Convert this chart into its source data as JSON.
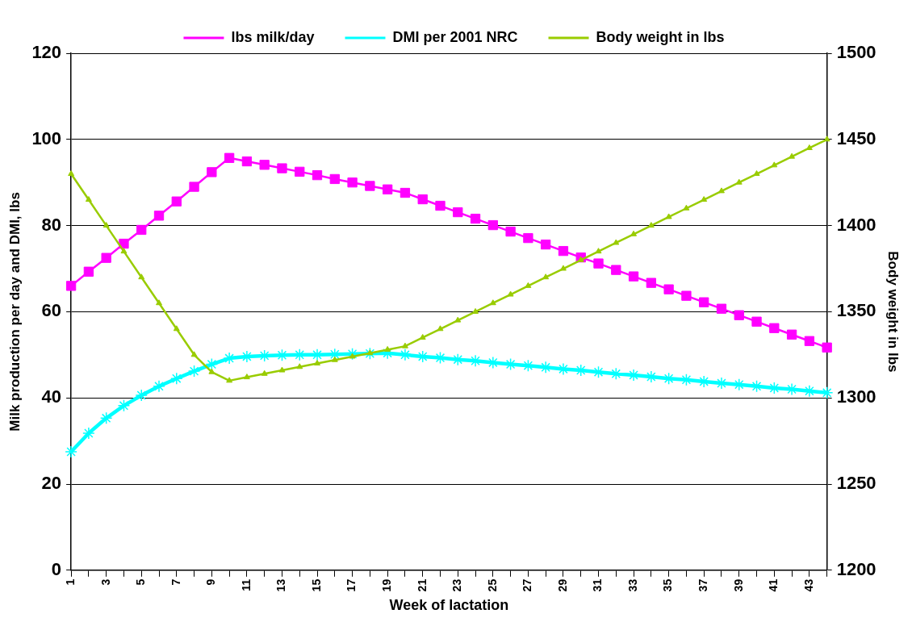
{
  "chart_data": {
    "type": "line",
    "xlabel": "Week of lactation",
    "ylabel": "Milk production per day and DMI, lbs",
    "y2label": "Body weight in lbs",
    "categories": [
      "1",
      null,
      "3",
      null,
      "5",
      null,
      "7",
      null,
      "9",
      null,
      "11",
      null,
      "13",
      null,
      "15",
      null,
      "17",
      null,
      "19",
      null,
      "21",
      null,
      "23",
      null,
      "25",
      null,
      "27",
      null,
      "29",
      null,
      "31",
      null,
      "33",
      null,
      "35",
      null,
      "37",
      null,
      "39",
      null,
      "41",
      null,
      "43",
      null
    ],
    "series": [
      {
        "name": "lbs milk/day",
        "color": "#ff00ff",
        "marker": "square",
        "values": [
          66,
          69.3,
          72.5,
          75.8,
          79,
          82.3,
          85.6,
          89,
          92.4,
          95.7,
          94.9,
          94.1,
          93.3,
          92.5,
          91.7,
          90.8,
          90,
          89.2,
          88.4,
          87.6,
          86.1,
          84.6,
          83.1,
          81.6,
          80.1,
          78.6,
          77.1,
          75.6,
          74.1,
          72.6,
          71.2,
          69.7,
          68.2,
          66.7,
          65.2,
          63.7,
          62.2,
          60.7,
          59.2,
          57.7,
          56.2,
          54.7,
          53.2,
          51.7
        ]
      },
      {
        "name": "DMI per 2001 NRC",
        "color": "#00ffff",
        "marker": "cross",
        "values": [
          27.5,
          31.8,
          35.3,
          38.2,
          40.6,
          42.7,
          44.5,
          46.2,
          47.8,
          49.2,
          49.6,
          49.8,
          49.9,
          50,
          50,
          50.1,
          50.2,
          50.3,
          50.4,
          50,
          49.6,
          49.3,
          48.9,
          48.6,
          48.2,
          47.8,
          47.5,
          47.1,
          46.7,
          46.4,
          46,
          45.6,
          45.3,
          44.9,
          44.5,
          44.2,
          43.8,
          43.4,
          43.1,
          42.7,
          42.3,
          42,
          41.6,
          41.2
        ]
      },
      {
        "name": "Body weight in lbs",
        "color": "#99cc00",
        "marker": "triangle",
        "axis": "y2",
        "values": [
          1430,
          1415,
          1400,
          1385,
          1370,
          1355,
          1340,
          1325,
          1315,
          1310,
          1312,
          1314,
          1316,
          1318,
          1320,
          1322,
          1324,
          1326,
          1328,
          1330,
          1335,
          1340,
          1345,
          1350,
          1355,
          1360,
          1365,
          1370,
          1375,
          1380,
          1385,
          1390,
          1395,
          1400,
          1405,
          1410,
          1415,
          1420,
          1425,
          1430,
          1435,
          1440,
          1445,
          1450
        ]
      }
    ],
    "ylim": [
      0,
      120
    ],
    "yticks": [
      0,
      20,
      40,
      60,
      80,
      100,
      120
    ],
    "y2lim": [
      1200,
      1500
    ],
    "y2ticks": [
      1200,
      1250,
      1300,
      1350,
      1400,
      1450,
      1500
    ],
    "grid": "y",
    "legend": "top"
  }
}
